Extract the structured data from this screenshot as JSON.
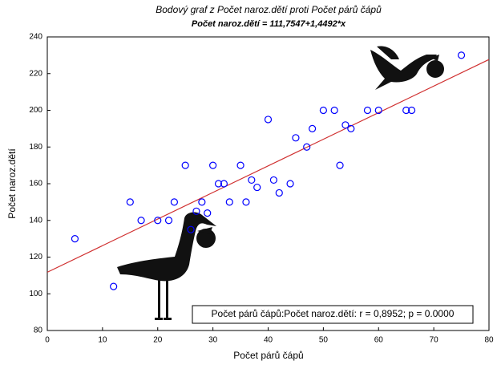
{
  "chart_data": {
    "type": "scatter",
    "title": "Bodový graf z Počet naroz.dětí proti Počet párů čápů",
    "subtitle": "Počet naroz.dětí = 111,7547+1,4492*x",
    "x_label": "Počet párů čápů",
    "y_label": "Počet naroz.dětí",
    "x": [
      5,
      12,
      15,
      17,
      20,
      22,
      23,
      25,
      26,
      27,
      28,
      29,
      30,
      31,
      32,
      33,
      35,
      36,
      37,
      38,
      40,
      41,
      42,
      44,
      45,
      47,
      48,
      50,
      52,
      53,
      54,
      55,
      58,
      60,
      65,
      66,
      75
    ],
    "values": [
      130,
      104,
      150,
      140,
      140,
      140,
      150,
      170,
      135,
      145,
      150,
      144,
      170,
      160,
      160,
      150,
      170,
      150,
      162,
      158,
      195,
      162,
      155,
      160,
      185,
      180,
      190,
      200,
      200,
      170,
      192,
      190,
      200,
      200,
      200,
      200,
      230
    ],
    "color": "#0000ff",
    "regression": {
      "intercept": 111.7547,
      "slope": 1.4492,
      "color": "#d03030"
    },
    "annotation": "Počet párů čápů:Počet naroz.dětí: r = 0,8952; p = 0.0000",
    "xlim": [
      0,
      80
    ],
    "xticks": [
      0,
      10,
      20,
      30,
      40,
      50,
      60,
      70,
      80
    ],
    "ylim": [
      80,
      240
    ],
    "yticks": [
      80,
      100,
      120,
      140,
      160,
      180,
      200,
      220,
      240
    ]
  }
}
